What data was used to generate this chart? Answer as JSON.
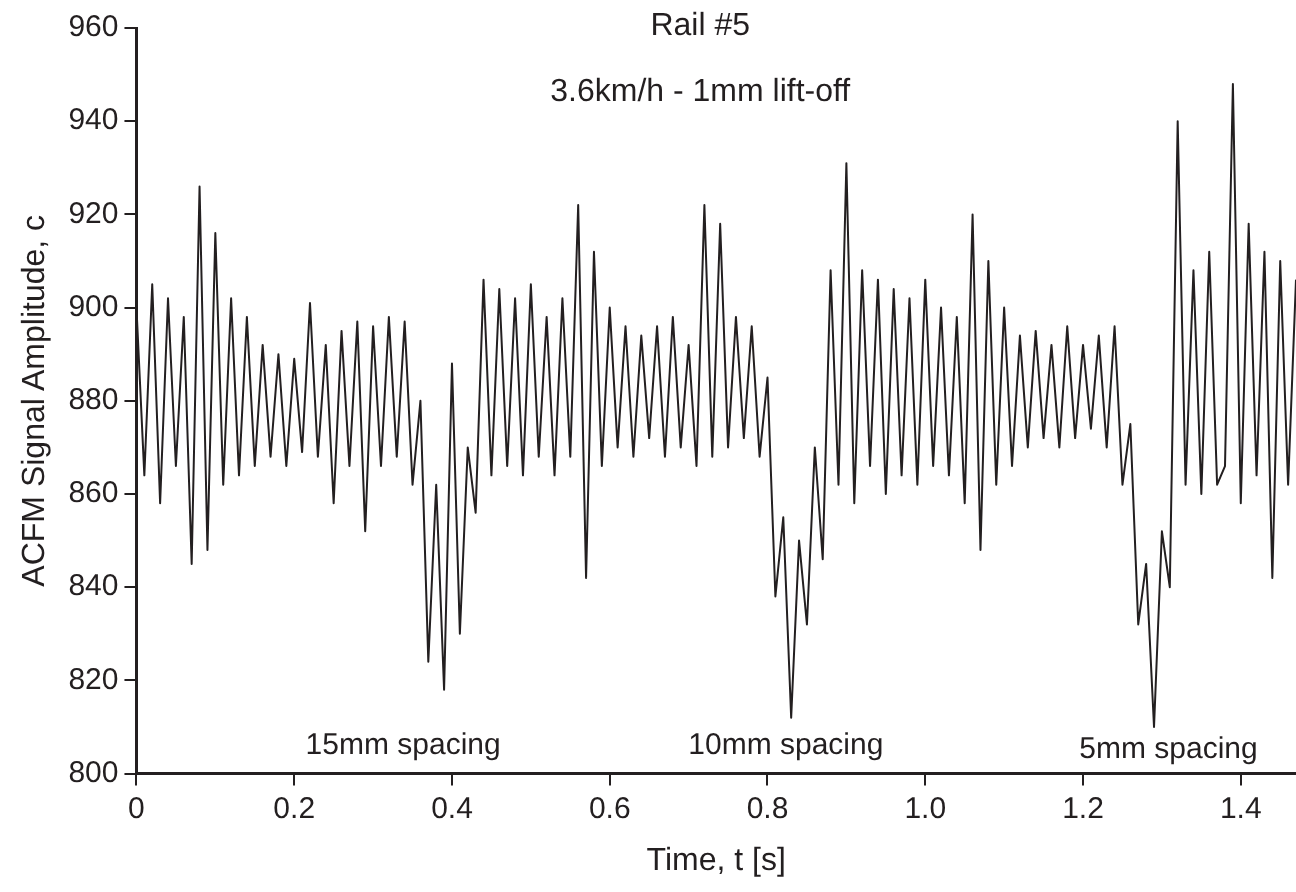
{
  "chart_data": {
    "type": "line",
    "title": "Rail #5",
    "subtitle": "3.6km/h - 1mm lift-off",
    "xlabel": "Time, t [s]",
    "ylabel": "ACFM Signal Amplitude, c",
    "x": [
      0.0,
      0.01,
      0.02,
      0.03,
      0.04,
      0.05,
      0.06,
      0.07,
      0.08,
      0.09,
      0.1,
      0.11,
      0.12,
      0.13,
      0.14,
      0.15,
      0.16,
      0.17,
      0.18,
      0.19,
      0.2,
      0.21,
      0.22,
      0.23,
      0.24,
      0.25,
      0.26,
      0.27,
      0.28,
      0.29,
      0.3,
      0.31,
      0.32,
      0.33,
      0.34,
      0.35,
      0.36,
      0.37,
      0.38,
      0.39,
      0.4,
      0.41,
      0.42,
      0.43,
      0.44,
      0.45,
      0.46,
      0.47,
      0.48,
      0.49,
      0.5,
      0.51,
      0.52,
      0.53,
      0.54,
      0.55,
      0.56,
      0.57,
      0.58,
      0.59,
      0.6,
      0.61,
      0.62,
      0.63,
      0.64,
      0.65,
      0.66,
      0.67,
      0.68,
      0.69,
      0.7,
      0.71,
      0.72,
      0.73,
      0.74,
      0.75,
      0.76,
      0.77,
      0.78,
      0.79,
      0.8,
      0.81,
      0.82,
      0.83,
      0.84,
      0.85,
      0.86,
      0.87,
      0.88,
      0.89,
      0.9,
      0.91,
      0.92,
      0.93,
      0.94,
      0.95,
      0.96,
      0.97,
      0.98,
      0.99,
      1.0,
      1.01,
      1.02,
      1.03,
      1.04,
      1.05,
      1.06,
      1.07,
      1.08,
      1.09,
      1.1,
      1.11,
      1.12,
      1.13,
      1.14,
      1.15,
      1.16,
      1.17,
      1.18,
      1.19,
      1.2,
      1.21,
      1.22,
      1.23,
      1.24,
      1.25,
      1.26,
      1.27,
      1.28,
      1.29,
      1.3,
      1.31,
      1.32,
      1.33,
      1.34,
      1.35,
      1.36,
      1.37,
      1.38,
      1.39,
      1.4,
      1.41,
      1.42,
      1.43,
      1.44,
      1.45,
      1.46,
      1.47
    ],
    "series": [
      {
        "color": "#231f20",
        "values": [
          900,
          864,
          905,
          858,
          902,
          866,
          898,
          845,
          926,
          848,
          916,
          862,
          902,
          864,
          898,
          866,
          892,
          868,
          890,
          866,
          889,
          869,
          901,
          868,
          892,
          858,
          895,
          866,
          897,
          852,
          896,
          866,
          898,
          868,
          897,
          862,
          880,
          824,
          862,
          818,
          888,
          830,
          870,
          856,
          906,
          864,
          904,
          866,
          902,
          864,
          905,
          868,
          898,
          864,
          902,
          868,
          922,
          842,
          912,
          866,
          900,
          870,
          896,
          868,
          894,
          872,
          896,
          868,
          898,
          870,
          892,
          866,
          922,
          868,
          918,
          870,
          898,
          872,
          896,
          868,
          885,
          838,
          855,
          812,
          850,
          832,
          870,
          846,
          908,
          862,
          931,
          858,
          908,
          866,
          906,
          860,
          904,
          864,
          902,
          862,
          906,
          866,
          900,
          864,
          898,
          858,
          920,
          848,
          910,
          862,
          900,
          866,
          894,
          870,
          895,
          872,
          892,
          870,
          896,
          872,
          892,
          874,
          894,
          870,
          896,
          862,
          875,
          832,
          845,
          810,
          852,
          840,
          940,
          862,
          908,
          860,
          912,
          862,
          866,
          948,
          858,
          918,
          864,
          912,
          842,
          910,
          862,
          906
        ]
      }
    ],
    "xlim": [
      0,
      1.47
    ],
    "xticks": [
      0,
      0.2,
      0.4,
      0.6,
      0.8,
      {
        "value": 1,
        "label": "1.0"
      },
      1.2,
      1.4
    ],
    "ylim": [
      800,
      960
    ],
    "yticks": [
      800,
      820,
      840,
      860,
      880,
      900,
      920,
      940,
      960
    ],
    "annotations": [
      "15mm spacing",
      "10mm spacing",
      "5mm spacing"
    ],
    "marker": "none",
    "line_style": "solid"
  }
}
